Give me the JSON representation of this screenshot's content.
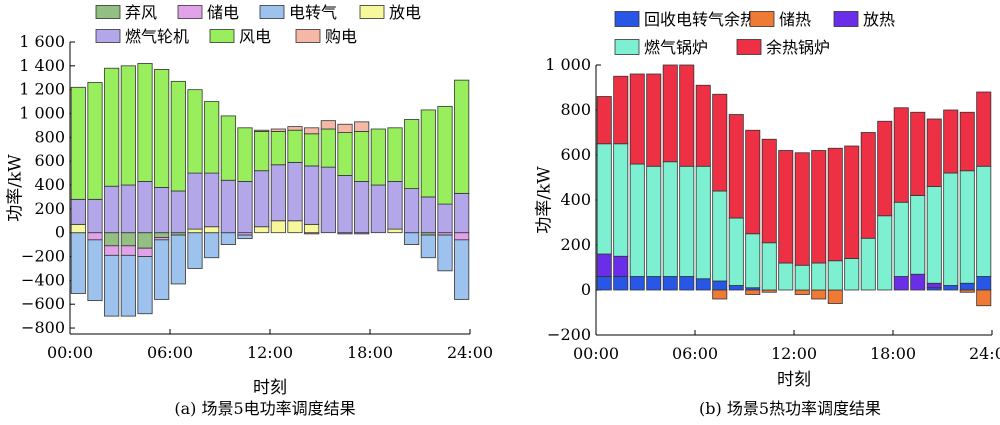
{
  "chart_data": [
    {
      "type": "bar",
      "stacked": true,
      "caption": "(a) 场景5电功率调度结果",
      "xlabel": "时刻",
      "ylabel": "功率/kW",
      "ylim": [
        -850,
        1600
      ],
      "yticks": [
        -800,
        -600,
        -400,
        -200,
        0,
        200,
        400,
        600,
        800,
        1000,
        1200,
        1400,
        1600
      ],
      "ytick_labels": [
        "−800",
        "−600",
        "−400",
        "−200",
        "0",
        "200",
        "400",
        "600",
        "800",
        "1 000",
        "1 200",
        "1 400",
        "1 600"
      ],
      "xlim": [
        0,
        24
      ],
      "xticks": [
        0,
        6,
        12,
        18,
        24
      ],
      "xtick_labels": [
        "00:00",
        "06:00",
        "12:00",
        "18:00",
        "24:00"
      ],
      "legend_placement": "top, outside",
      "x": [
        0.5,
        1.5,
        2.5,
        3.5,
        4.5,
        5.5,
        6.5,
        7.5,
        8.5,
        9.5,
        10.5,
        11.5,
        12.5,
        13.5,
        14.5,
        15.5,
        16.5,
        17.5,
        18.5,
        19.5,
        20.5,
        21.5,
        22.5,
        23.5
      ],
      "series": [
        {
          "name": "弃风",
          "color": "#93BF82",
          "values": [
            0,
            0,
            -110,
            -110,
            -130,
            -40,
            -20,
            0,
            0,
            0,
            0,
            0,
            0,
            0,
            0,
            0,
            0,
            0,
            0,
            0,
            0,
            -20,
            0,
            0
          ]
        },
        {
          "name": "储电",
          "color": "#E2A2EA",
          "values": [
            0,
            -60,
            -80,
            -80,
            -70,
            -20,
            0,
            0,
            0,
            0,
            -20,
            0,
            0,
            0,
            -10,
            0,
            -10,
            -10,
            0,
            0,
            0,
            0,
            -20,
            -60
          ]
        },
        {
          "name": "电转气",
          "color": "#9CC2ED",
          "values": [
            -510,
            -510,
            -510,
            -510,
            -480,
            -500,
            -410,
            -300,
            -210,
            -100,
            -30,
            0,
            0,
            0,
            0,
            0,
            0,
            0,
            0,
            0,
            -100,
            -190,
            -300,
            -500
          ]
        },
        {
          "name": "放电",
          "color": "#F7F79C",
          "values": [
            70,
            0,
            0,
            0,
            0,
            0,
            0,
            30,
            50,
            0,
            0,
            50,
            100,
            100,
            70,
            0,
            0,
            0,
            0,
            30,
            0,
            0,
            0,
            0
          ]
        },
        {
          "name": "燃气轮机",
          "color": "#B4A7E9",
          "values": [
            210,
            280,
            390,
            400,
            430,
            380,
            350,
            470,
            450,
            440,
            430,
            470,
            470,
            490,
            490,
            550,
            480,
            430,
            400,
            400,
            370,
            300,
            240,
            330
          ]
        },
        {
          "name": "风电",
          "color": "#98EE5C",
          "values": [
            940,
            980,
            990,
            1000,
            990,
            990,
            920,
            700,
            600,
            540,
            450,
            330,
            280,
            270,
            270,
            320,
            360,
            420,
            470,
            450,
            580,
            730,
            820,
            950
          ]
        },
        {
          "name": "购电",
          "color": "#F6B8A6",
          "values": [
            0,
            0,
            0,
            0,
            0,
            0,
            0,
            0,
            0,
            0,
            0,
            10,
            20,
            30,
            50,
            70,
            70,
            80,
            0,
            0,
            0,
            0,
            0,
            0
          ]
        }
      ]
    },
    {
      "type": "bar",
      "stacked": true,
      "caption": "(b) 场景5热功率调度结果",
      "xlabel": "时刻",
      "ylabel": "功率/kW",
      "ylim": [
        -200,
        1000
      ],
      "yticks": [
        -200,
        0,
        200,
        400,
        600,
        800,
        1000
      ],
      "ytick_labels": [
        "−200",
        "0",
        "200",
        "400",
        "600",
        "800",
        "1 000"
      ],
      "xlim": [
        0,
        24
      ],
      "xticks": [
        0,
        6,
        12,
        18,
        24
      ],
      "xtick_labels": [
        "00:00",
        "06:00",
        "12:00",
        "18:00",
        "24:00"
      ],
      "legend_placement": "top, outside",
      "x": [
        0.5,
        1.5,
        2.5,
        3.5,
        4.5,
        5.5,
        6.5,
        7.5,
        8.5,
        9.5,
        10.5,
        11.5,
        12.5,
        13.5,
        14.5,
        15.5,
        16.5,
        17.5,
        18.5,
        19.5,
        20.5,
        21.5,
        22.5,
        23.5
      ],
      "series": [
        {
          "name": "回收电转气余热",
          "color": "#2857E8",
          "values": [
            60,
            60,
            60,
            60,
            60,
            60,
            50,
            40,
            20,
            10,
            0,
            0,
            0,
            0,
            0,
            0,
            0,
            0,
            0,
            0,
            10,
            20,
            30,
            60
          ]
        },
        {
          "name": "储热",
          "color": "#EE7A35",
          "values": [
            0,
            0,
            0,
            0,
            0,
            0,
            0,
            -40,
            0,
            -20,
            -10,
            0,
            -20,
            -40,
            -60,
            0,
            0,
            0,
            0,
            0,
            0,
            0,
            -10,
            -70
          ]
        },
        {
          "name": "放热",
          "color": "#6A2EE8",
          "values": [
            100,
            90,
            0,
            0,
            0,
            0,
            0,
            0,
            0,
            0,
            0,
            0,
            0,
            0,
            0,
            0,
            0,
            0,
            60,
            70,
            20,
            0,
            0,
            0
          ]
        },
        {
          "name": "燃气锅炉",
          "color": "#7CF0D1",
          "values": [
            490,
            500,
            500,
            490,
            510,
            490,
            500,
            400,
            300,
            240,
            210,
            120,
            110,
            120,
            130,
            140,
            230,
            330,
            330,
            350,
            430,
            500,
            500,
            490
          ]
        },
        {
          "name": "余热锅炉",
          "color": "#EE3045",
          "values": [
            210,
            300,
            400,
            410,
            430,
            450,
            360,
            430,
            460,
            460,
            460,
            500,
            500,
            500,
            500,
            500,
            470,
            420,
            420,
            370,
            300,
            280,
            260,
            330
          ]
        }
      ]
    }
  ]
}
